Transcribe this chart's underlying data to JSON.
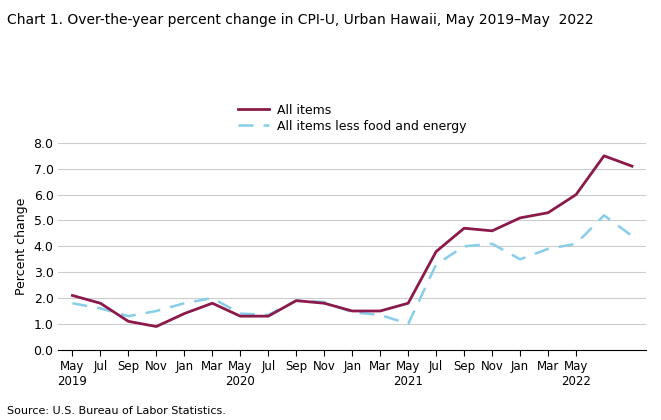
{
  "title": "Chart 1. Over-the-year percent change in CPI-U, Urban Hawaii, May 2019–May  2022",
  "ylabel": "Percent change",
  "source": "Source: U.S. Bureau of Labor Statistics.",
  "all_items_color": "#8B1A4A",
  "core_color": "#87CEEB",
  "ylim": [
    0.0,
    8.0
  ],
  "yticks": [
    0.0,
    1.0,
    2.0,
    3.0,
    4.0,
    5.0,
    6.0,
    7.0,
    8.0
  ],
  "all_items": [
    2.1,
    1.8,
    1.1,
    0.9,
    1.4,
    1.8,
    1.3,
    1.3,
    1.9,
    1.8,
    1.5,
    1.5,
    1.8,
    3.8,
    4.7,
    4.6,
    5.1,
    5.3,
    6.0,
    7.5,
    7.1
  ],
  "core": [
    1.8,
    1.6,
    1.3,
    1.5,
    1.8,
    2.0,
    1.4,
    1.35,
    1.9,
    1.85,
    1.45,
    1.35,
    1.0,
    3.3,
    4.0,
    4.1,
    3.5,
    3.9,
    4.1,
    5.2,
    4.4
  ],
  "legend_all_items": "All items",
  "legend_core": "All items less food and energy"
}
